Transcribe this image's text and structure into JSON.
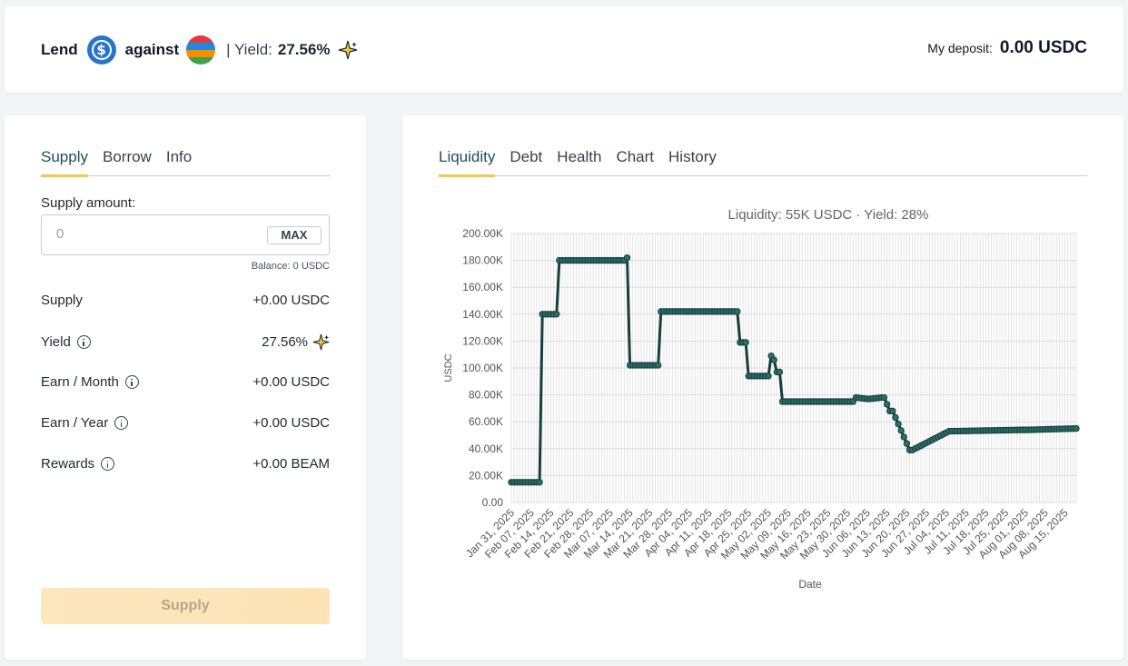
{
  "header": {
    "lend_label": "Lend",
    "usdc_symbol": "$",
    "against_label": "against",
    "yield_label": "| Yield:",
    "yield_value": "27.56%",
    "deposit_label": "My deposit:",
    "deposit_value": "0.00 USDC",
    "icons": [
      "usdc-coin-icon",
      "beam-coin-icon",
      "sparkle-icon"
    ]
  },
  "left": {
    "tabs": [
      "Supply",
      "Borrow",
      "Info"
    ],
    "active_tab": "Supply",
    "amount_label": "Supply amount:",
    "amount_placeholder": "0",
    "max_label": "MAX",
    "balance": "Balance: 0 USDC",
    "rows": [
      {
        "label": "Supply",
        "value": "+0.00 USDC"
      },
      {
        "label": "Yield",
        "value": "27.56%"
      },
      {
        "label": "Earn / Month",
        "value": "+0.00 USDC"
      },
      {
        "label": "Earn / Year",
        "value": "+0.00 USDC"
      },
      {
        "label": "Rewards",
        "value": "+0.00 BEAM"
      }
    ],
    "supply_button": "Supply"
  },
  "right": {
    "tabs": [
      "Liquidity",
      "Debt",
      "Health",
      "Chart",
      "History"
    ],
    "active_tab": "Liquidity"
  },
  "colors": {
    "accent": "#f5c451",
    "line": "#173f3b",
    "usdc": "#2775ca"
  },
  "chart_data": {
    "type": "line",
    "title": "Liquidity: 55K USDC · Yield: 28%",
    "xlabel": "Date",
    "ylabel": "USDC",
    "ylim": [
      0,
      200000
    ],
    "yticks": [
      "0.00",
      "20.00K",
      "40.00K",
      "60.00K",
      "80.00K",
      "100.00K",
      "120.00K",
      "140.00K",
      "160.00K",
      "180.00K",
      "200.00K"
    ],
    "xticks": [
      "Jan 31, 2025",
      "Feb 07, 2025",
      "Feb 14, 2025",
      "Feb 21, 2025",
      "Feb 28, 2025",
      "Mar 07, 2025",
      "Mar 14, 2025",
      "Mar 21, 2025",
      "Mar 28, 2025",
      "Apr 04, 2025",
      "Apr 11, 2025",
      "Apr 18, 2025",
      "Apr 25, 2025",
      "May 02, 2025",
      "May 09, 2025",
      "May 16, 2025",
      "May 23, 2025",
      "May 30, 2025",
      "Jun 06, 2025",
      "Jun 13, 2025",
      "Jun 20, 2025",
      "Jun 27, 2025",
      "Jul 04, 2025",
      "Jul 11, 2025",
      "Jul 18, 2025",
      "Jul 25, 2025",
      "Aug 01, 2025",
      "Aug 08, 2025",
      "Aug 15, 2025"
    ],
    "grid": true,
    "x_start": "2025-01-31",
    "x_end": "2025-08-19",
    "series": [
      {
        "x": [
          "2025-01-31",
          "2025-02-10",
          "2025-02-11",
          "2025-02-16",
          "2025-02-17",
          "2025-03-12",
          "2025-03-13",
          "2025-03-14",
          "2025-03-24",
          "2025-03-25",
          "2025-04-21",
          "2025-04-22",
          "2025-04-24",
          "2025-04-25",
          "2025-05-02",
          "2025-05-03",
          "2025-05-04",
          "2025-05-05",
          "2025-05-06",
          "2025-05-07",
          "2025-06-01",
          "2025-06-02",
          "2025-06-06",
          "2025-06-07",
          "2025-06-11",
          "2025-06-12",
          "2025-06-14",
          "2025-06-15",
          "2025-06-21",
          "2025-06-22",
          "2025-07-05",
          "2025-07-06",
          "2025-08-01",
          "2025-08-02",
          "2025-08-19"
        ],
        "y": [
          15000,
          15000,
          140000,
          140000,
          180000,
          180000,
          182000,
          102000,
          102000,
          142000,
          142000,
          119000,
          119000,
          94000,
          94000,
          109000,
          106000,
          97000,
          97000,
          75000,
          75000,
          78000,
          77000,
          77000,
          78000,
          78000,
          68000,
          68000,
          39000,
          39000,
          53000,
          53000,
          54000,
          54000,
          55000
        ]
      }
    ]
  }
}
